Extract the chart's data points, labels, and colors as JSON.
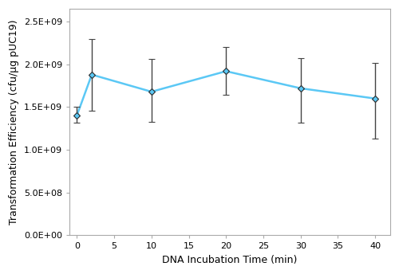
{
  "x": [
    0,
    2,
    10,
    20,
    30,
    40
  ],
  "y": [
    1400000000.0,
    1880000000.0,
    1680000000.0,
    1920000000.0,
    1720000000.0,
    1600000000.0
  ],
  "yerr_upper": [
    100000000.0,
    420000000.0,
    380000000.0,
    280000000.0,
    350000000.0,
    420000000.0
  ],
  "yerr_lower": [
    80000000.0,
    420000000.0,
    350000000.0,
    280000000.0,
    400000000.0,
    470000000.0
  ],
  "line_color": "#5BC8F5",
  "marker_color": "#5BC8F5",
  "marker_edge_color": "#2a2a2a",
  "error_color": "#444444",
  "xlabel": "DNA Incubation Time (min)",
  "ylabel": "Transformation Efficiency (cfu/μg pUC19)",
  "xlim": [
    -1,
    42
  ],
  "ylim": [
    0,
    2650000000.0
  ],
  "xticks": [
    0,
    5,
    10,
    15,
    20,
    25,
    30,
    35,
    40
  ],
  "yticks": [
    0,
    500000000.0,
    1000000000.0,
    1500000000.0,
    2000000000.0,
    2500000000.0
  ],
  "ytick_labels": [
    "0.0E+00",
    "5.0E+08",
    "1.0E+09",
    "1.5E+09",
    "2.0E+09",
    "2.5E+09"
  ],
  "background_color": "#ffffff",
  "spine_color": "#aaaaaa",
  "marker_style": "D",
  "marker_size": 4,
  "line_width": 1.8,
  "xlabel_fontsize": 9,
  "ylabel_fontsize": 9,
  "tick_fontsize": 8
}
